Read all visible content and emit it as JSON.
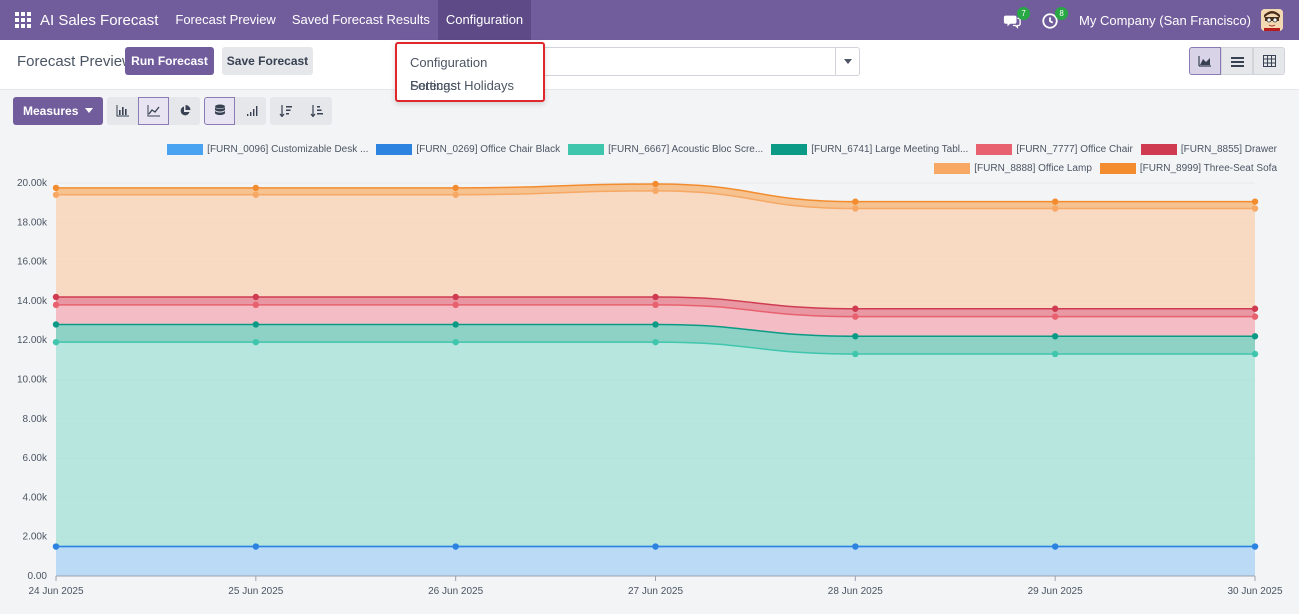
{
  "app": {
    "brand": "AI Sales Forecast",
    "nav": [
      "Forecast Preview",
      "Saved Forecast Results",
      "Configuration"
    ],
    "messages_count": "7",
    "activities_count": "8",
    "company": "My Company (San Francisco)"
  },
  "control": {
    "title": "Forecast Preview",
    "run_label": "Run Forecast",
    "save_label": "Save Forecast"
  },
  "dropdown": {
    "items": [
      "Configuration Settings",
      "Forecast Holidays"
    ]
  },
  "toolbar": {
    "measures_label": "Measures"
  },
  "colors": {
    "primary": "#715c9c",
    "dropdown_border": "#e0272c"
  },
  "chart_data": {
    "type": "area",
    "stacked": true,
    "x": [
      "24 Jun 2025",
      "25 Jun 2025",
      "26 Jun 2025",
      "27 Jun 2025",
      "28 Jun 2025",
      "29 Jun 2025",
      "30 Jun 2025"
    ],
    "y_ticks": [
      "0.00",
      "2.00k",
      "4.00k",
      "6.00k",
      "8.00k",
      "10.00k",
      "12.00k",
      "14.00k",
      "16.00k",
      "18.00k",
      "20.00k"
    ],
    "ylim": [
      0,
      20000
    ],
    "grid": true,
    "legend_position": "top-right",
    "series": [
      {
        "name": "[FURN_0096] Customizable Desk ...",
        "color": "#a8d1f5",
        "legend_color": "#4aa3f0",
        "values": [
          1500,
          1500,
          1500,
          1500,
          1500,
          1500,
          1500
        ]
      },
      {
        "name": "[FURN_0269] Office Chair Black",
        "color": "#2d84e0",
        "legend_color": "#2d84e0",
        "values": [
          0,
          0,
          0,
          0,
          0,
          0,
          0
        ]
      },
      {
        "name": "[FURN_6667] Acoustic Bloc Scre...",
        "color": "#a3e2d6",
        "legend_color": "#3fc6ad",
        "values": [
          10400,
          10400,
          10400,
          10400,
          9800,
          9800,
          9800
        ]
      },
      {
        "name": "[FURN_6741] Large Meeting Tabl...",
        "color": "#6cc7b6",
        "legend_color": "#0b9a85",
        "values": [
          900,
          900,
          900,
          900,
          900,
          900,
          900
        ]
      },
      {
        "name": "[FURN_7777] Office Chair",
        "color": "#f4aab3",
        "legend_color": "#e8616f",
        "values": [
          1000,
          1000,
          1000,
          1000,
          1000,
          1000,
          1000
        ]
      },
      {
        "name": "[FURN_8855] Drawer",
        "color": "#e67987",
        "legend_color": "#cf3c52",
        "values": [
          400,
          400,
          400,
          400,
          400,
          400,
          400
        ]
      },
      {
        "name": "[FURN_8888] Office Lamp",
        "color": "#fad2b0",
        "legend_color": "#f6a864",
        "values": [
          5200,
          5200,
          5200,
          5400,
          5100,
          5100,
          5100
        ]
      },
      {
        "name": "[FURN_8999] Three-Seat Sofa",
        "color": "#f5b26e",
        "legend_color": "#f38c2f",
        "values": [
          350,
          350,
          350,
          350,
          350,
          350,
          350
        ]
      }
    ]
  }
}
